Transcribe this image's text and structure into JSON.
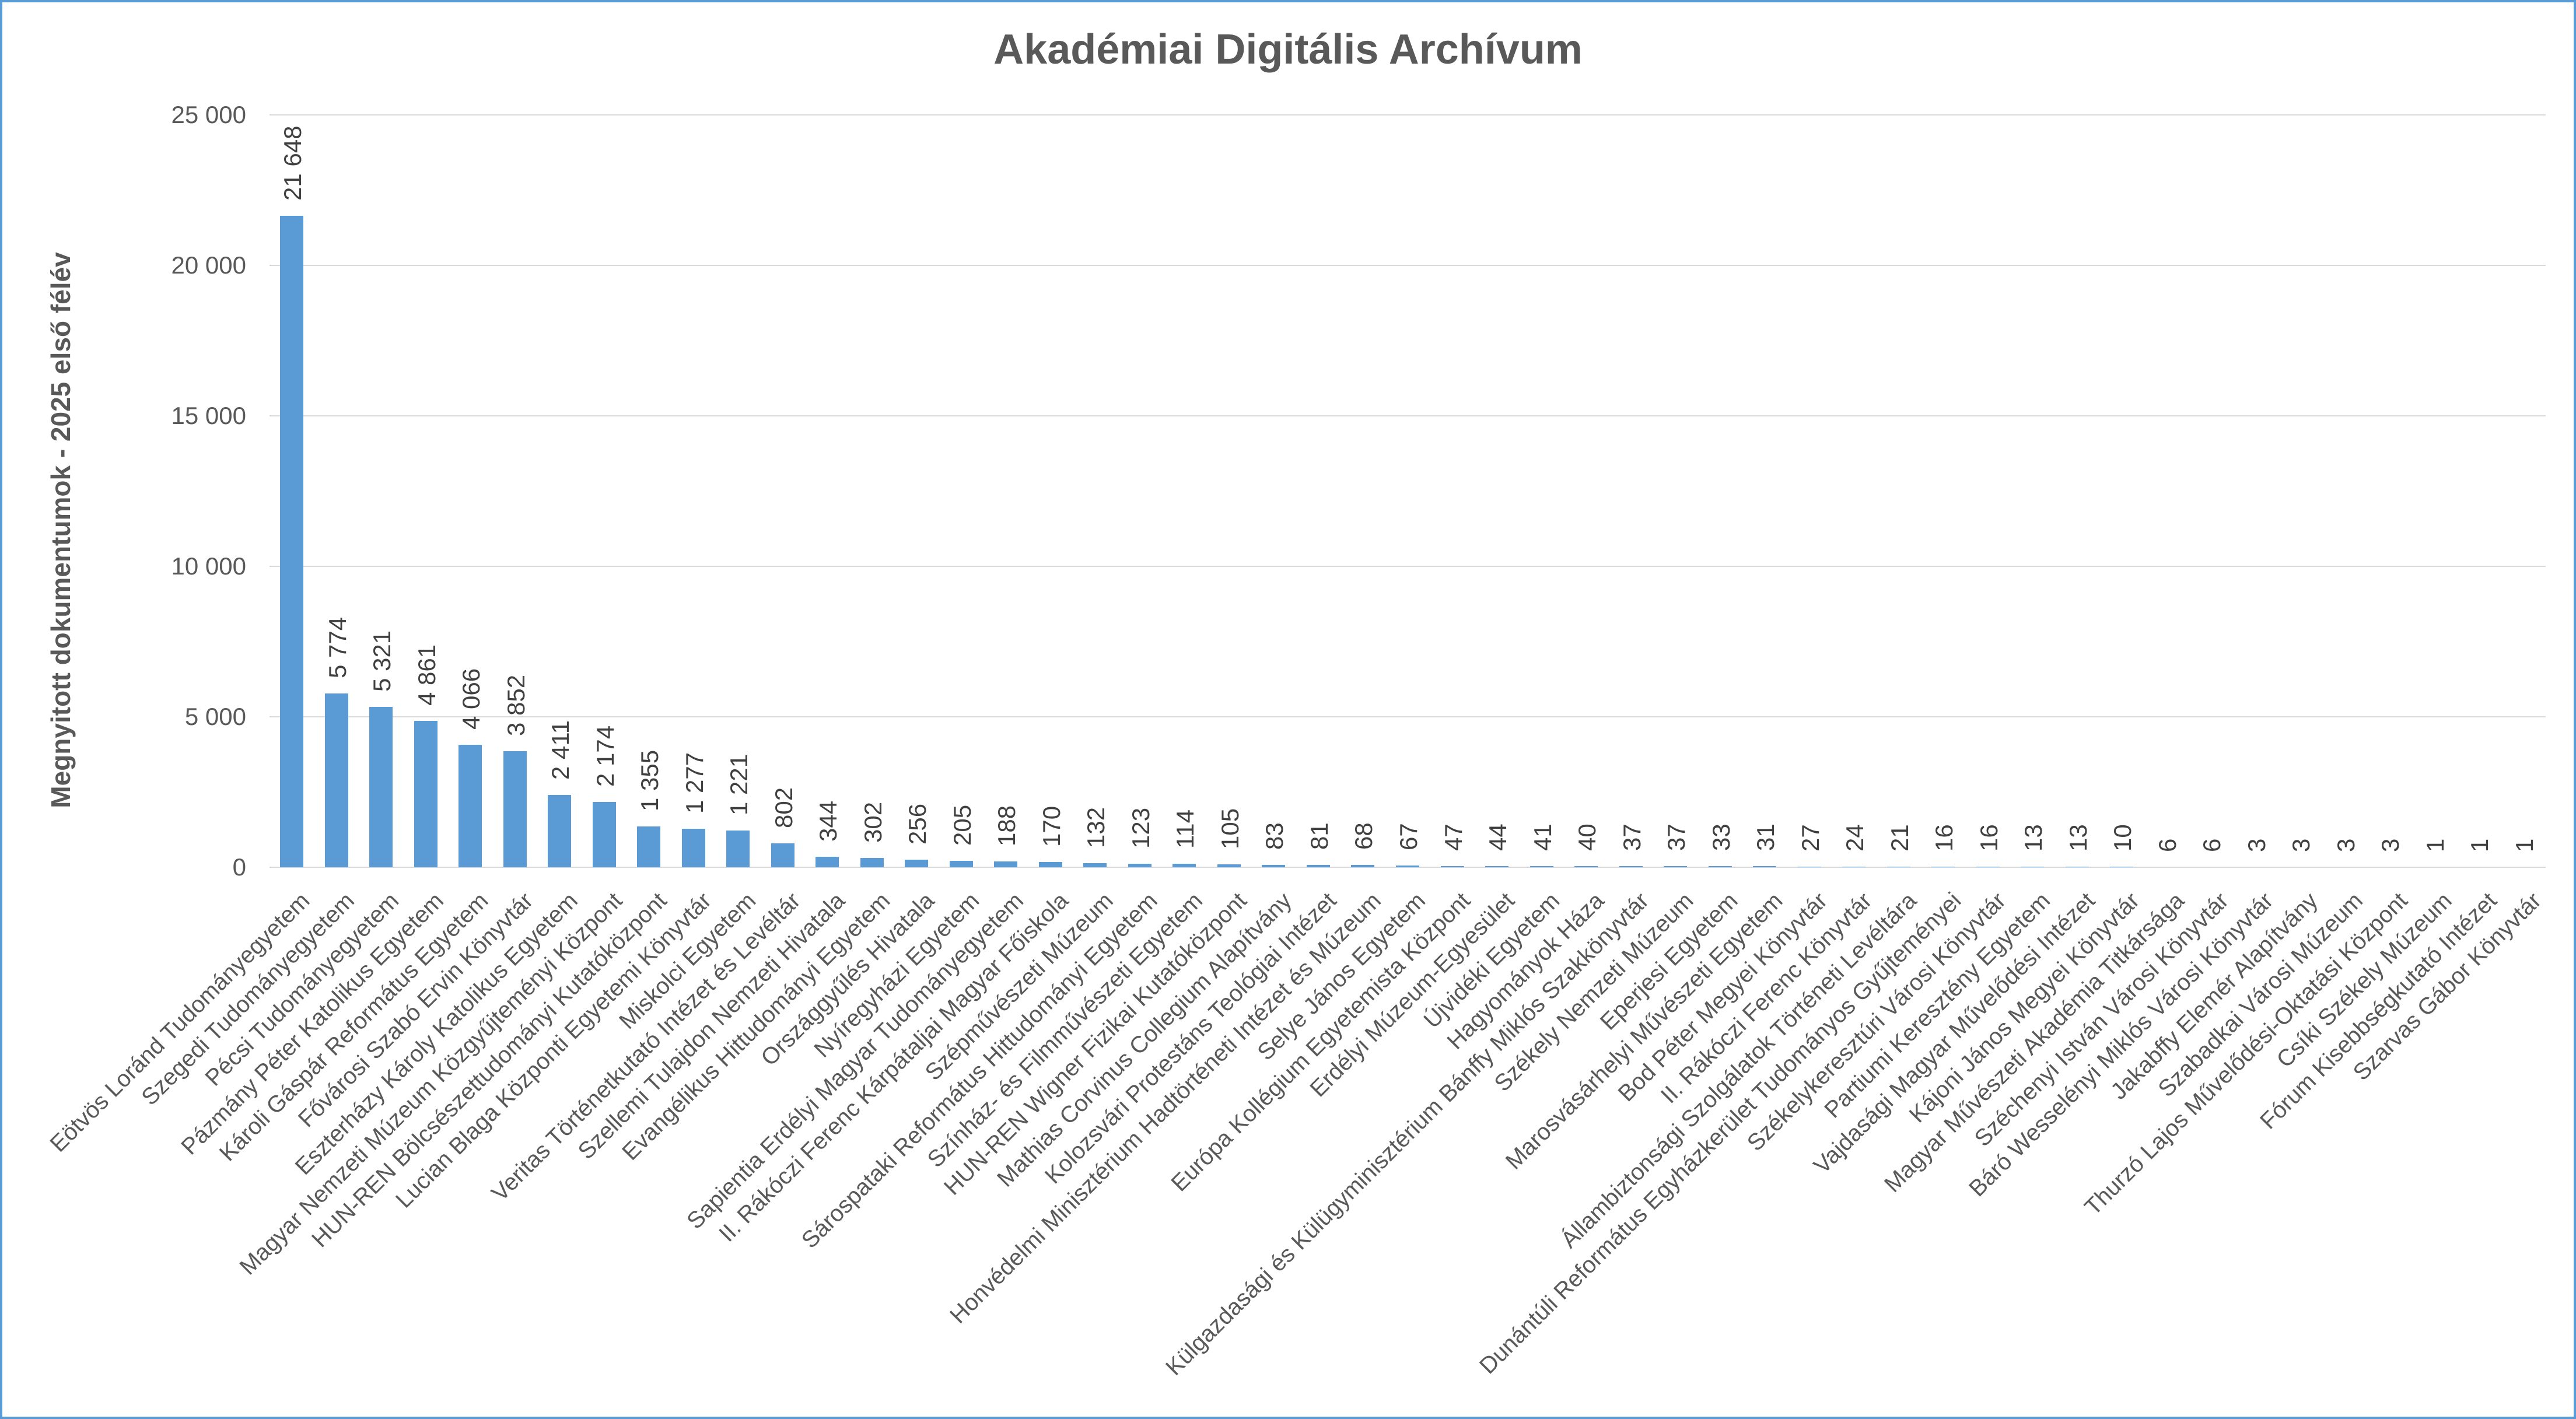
{
  "chart_data": {
    "type": "bar",
    "title": "Akadémiai Digitális Archívum",
    "ylabel": "Megnyitott dokumentumok - 2025 első félév",
    "xlabel": "",
    "ylim": [
      0,
      25000
    ],
    "ytick_values": [
      0,
      5000,
      10000,
      15000,
      20000,
      25000
    ],
    "ytick_labels": [
      "0",
      "5 000",
      "10 000",
      "15 000",
      "20 000",
      "25 000"
    ],
    "grid": true,
    "legend": false,
    "bar_color": "#5B9BD5",
    "categories": [
      "Eötvös Loránd Tudományegyetem",
      "Szegedi Tudományegyetem",
      "Pécsi Tudományegyetem",
      "Pázmány Péter Katolikus Egyetem",
      "Károli Gáspár Református Egyetem",
      "Fővárosi Szabó Ervin Könyvtár",
      "Eszterházy Károly Katolikus Egyetem",
      "Magyar Nemzeti Múzeum Közgyűjteményi Központ",
      "HUN-REN Bölcsészettudományi Kutatóközpont",
      "Lucian Blaga Központi Egyetemi Könyvtár",
      "Miskolci Egyetem",
      "Veritas Történetkutató Intézet és Levéltár",
      "Szellemi Tulajdon Nemzeti Hivatala",
      "Evangélikus Hittudományi Egyetem",
      "Országgyűlés Hivatala",
      "Nyíregyházi Egyetem",
      "Sapientia Erdélyi Magyar Tudományegyetem",
      "II. Rákóczi Ferenc Kárpátaljai Magyar Főiskola",
      "Szépművészeti Múzeum",
      "Sárospataki Református Hittudományi Egyetem",
      "Színház- és Filmművészeti Egyetem",
      "HUN-REN Wigner Fizikai Kutatóközpont",
      "Mathias Corvinus Collegium Alapítvány",
      "Kolozsvári Protestáns Teológiai Intézet",
      "Honvédelmi Minisztérium Hadtörténeti Intézet és Múzeum",
      "Selye János Egyetem",
      "Európa Kollégium Egyetemista Központ",
      "Erdélyi Múzeum-Egyesület",
      "Újvidéki Egyetem",
      "Hagyományok Háza",
      "Külgazdasági és Külügyminisztérium Bánffy Miklós Szakkönyvtár",
      "Székely Nemzeti Múzeum",
      "Eperjesi Egyetem",
      "Marosvásárhelyi Művészeti Egyetem",
      "Bod Péter Megyei Könyvtár",
      "II. Rákóczi Ferenc Könyvtár",
      "Állambiztonsági Szolgálatok Történeti Levéltára",
      "Dunántúli Református Egyházkerület Tudományos Gyűjteményei",
      "Székelykeresztúri Városi Könyvtár",
      "Partiumi Keresztény Egyetem",
      "Vajdasági Magyar Művelődési Intézet",
      "Kájoni János Megyei Könyvtár",
      "Magyar Művészeti Akadémia Titkársága",
      "Széchenyi István Városi Könyvtár",
      "Báró Wesselényi Miklós Városi Könyvtár",
      "Jakabffy Elemér Alapítvány",
      "Szabadkai Városi Múzeum",
      "Thurzó Lajos Művelődési-Oktatási Központ",
      "Csíki Székely Múzeum",
      "Fórum Kisebbségkutató Intézet",
      "Szarvas Gábor Könyvtár"
    ],
    "values": [
      21648,
      5774,
      5321,
      4861,
      4066,
      3852,
      2411,
      2174,
      1355,
      1277,
      1221,
      802,
      344,
      302,
      256,
      205,
      188,
      170,
      132,
      123,
      114,
      105,
      83,
      81,
      68,
      67,
      47,
      44,
      41,
      40,
      37,
      37,
      33,
      31,
      27,
      24,
      21,
      16,
      16,
      13,
      13,
      10,
      6,
      6,
      3,
      3,
      3,
      3,
      1,
      1,
      1
    ]
  },
  "style": {
    "frame_border_color": "#5B9BD5",
    "bar_color": "#5B9BD5",
    "gridline_color": "#D9D9D9",
    "axis_text_color": "#595959",
    "value_label_color": "#404040",
    "title_color": "#595959",
    "background": "#FFFFFF"
  }
}
